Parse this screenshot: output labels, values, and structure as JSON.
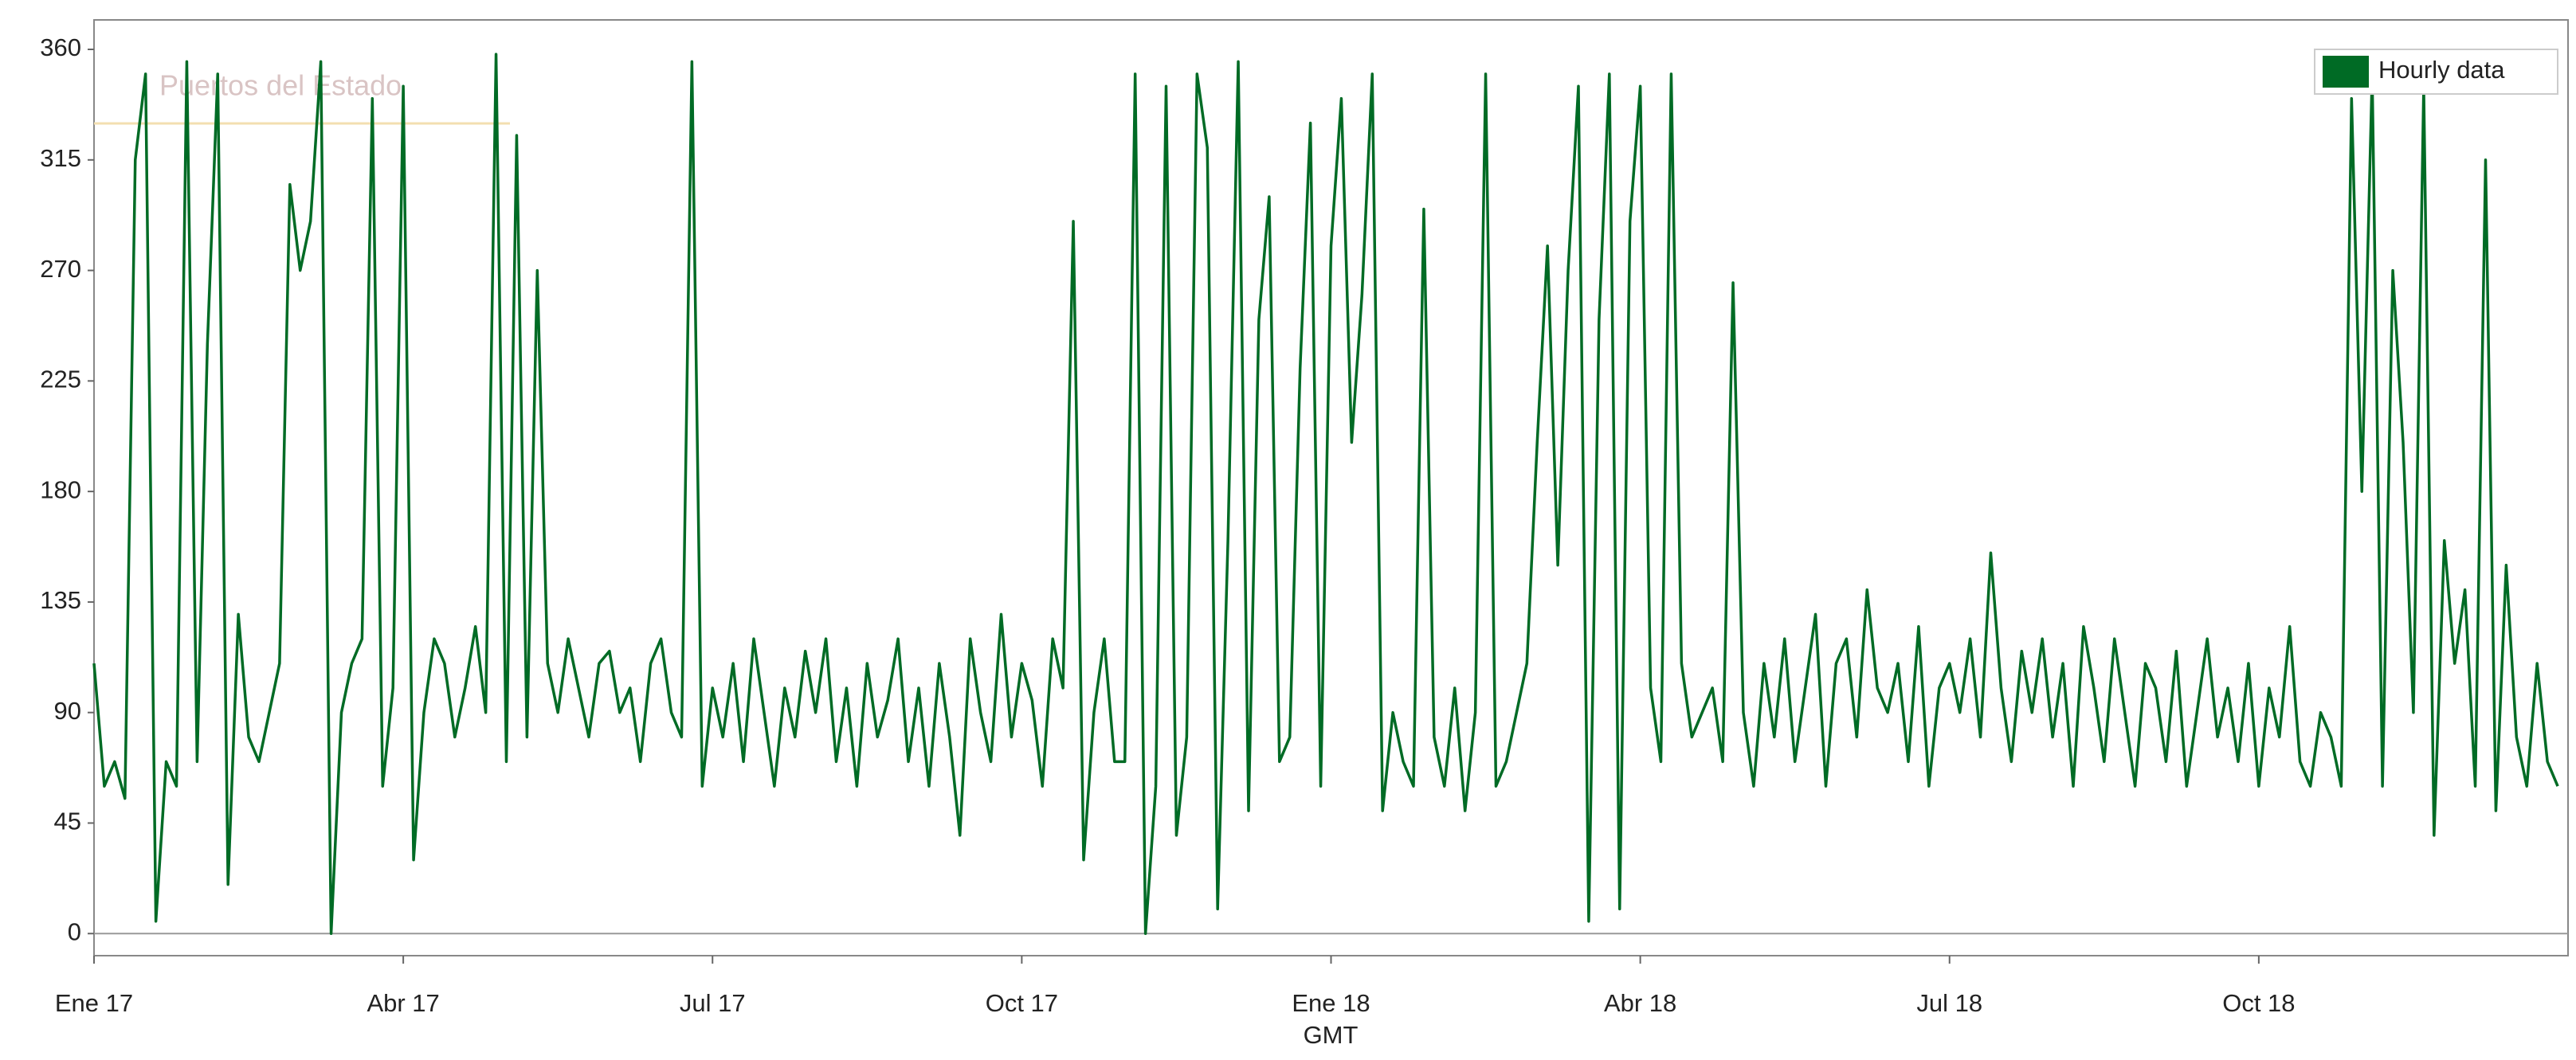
{
  "chart_data": {
    "type": "line",
    "watermark": "Puertos del Estado",
    "xlabel": "GMT",
    "legend": "top-right",
    "xlim": [
      0,
      24
    ],
    "xticks": [
      {
        "value": 0,
        "label": "Ene 17"
      },
      {
        "value": 3,
        "label": "Abr 17"
      },
      {
        "value": 6,
        "label": "Jul 17"
      },
      {
        "value": 9,
        "label": "Oct 17"
      },
      {
        "value": 12,
        "label": "Ene 18"
      },
      {
        "value": 15,
        "label": "Abr 18"
      },
      {
        "value": 18,
        "label": "Jul 18"
      },
      {
        "value": 21,
        "label": "Oct 18"
      }
    ],
    "ylim": [
      -9,
      372
    ],
    "yticks": [
      0,
      45,
      90,
      135,
      180,
      225,
      270,
      315,
      360
    ],
    "x": [
      0,
      0.1,
      0.2,
      0.3,
      0.4,
      0.5,
      0.6,
      0.7,
      0.8,
      0.9,
      1,
      1.1,
      1.2,
      1.3,
      1.4,
      1.5,
      1.6,
      1.7,
      1.8,
      1.9,
      2,
      2.1,
      2.2,
      2.3,
      2.4,
      2.5,
      2.6,
      2.7,
      2.8,
      2.9,
      3,
      3.1,
      3.2,
      3.3,
      3.4,
      3.5,
      3.6,
      3.7,
      3.8,
      3.9,
      4,
      4.1,
      4.2,
      4.3,
      4.4,
      4.5,
      4.6,
      4.7,
      4.8,
      4.9,
      5,
      5.1,
      5.2,
      5.3,
      5.4,
      5.5,
      5.6,
      5.7,
      5.8,
      5.9,
      6,
      6.1,
      6.2,
      6.3,
      6.4,
      6.5,
      6.6,
      6.7,
      6.8,
      6.9,
      7,
      7.1,
      7.2,
      7.3,
      7.4,
      7.5,
      7.6,
      7.7,
      7.8,
      7.9,
      8,
      8.1,
      8.2,
      8.3,
      8.4,
      8.5,
      8.6,
      8.7,
      8.8,
      8.9,
      9,
      9.1,
      9.2,
      9.3,
      9.4,
      9.5,
      9.6,
      9.7,
      9.8,
      9.9,
      10,
      10.1,
      10.2,
      10.3,
      10.4,
      10.5,
      10.6,
      10.7,
      10.8,
      10.9,
      11,
      11.1,
      11.2,
      11.3,
      11.4,
      11.5,
      11.6,
      11.7,
      11.8,
      11.9,
      12,
      12.1,
      12.2,
      12.3,
      12.4,
      12.5,
      12.6,
      12.7,
      12.8,
      12.9,
      13,
      13.1,
      13.2,
      13.3,
      13.4,
      13.5,
      13.6,
      13.7,
      13.8,
      13.9,
      14,
      14.1,
      14.2,
      14.3,
      14.4,
      14.5,
      14.6,
      14.7,
      14.8,
      14.9,
      15,
      15.1,
      15.2,
      15.3,
      15.4,
      15.5,
      15.6,
      15.7,
      15.8,
      15.9,
      16,
      16.1,
      16.2,
      16.3,
      16.4,
      16.5,
      16.6,
      16.7,
      16.8,
      16.9,
      17,
      17.1,
      17.2,
      17.3,
      17.4,
      17.5,
      17.6,
      17.7,
      17.8,
      17.9,
      18,
      18.1,
      18.2,
      18.3,
      18.4,
      18.5,
      18.6,
      18.7,
      18.8,
      18.9,
      19,
      19.1,
      19.2,
      19.3,
      19.4,
      19.5,
      19.6,
      19.7,
      19.8,
      19.9,
      20,
      20.1,
      20.2,
      20.3,
      20.4,
      20.5,
      20.6,
      20.7,
      20.8,
      20.9,
      21,
      21.1,
      21.2,
      21.3,
      21.4,
      21.5,
      21.6,
      21.7,
      21.8,
      21.9,
      22,
      22.1,
      22.2,
      22.3,
      22.4,
      22.5,
      22.6,
      22.7,
      22.8,
      22.9,
      23,
      23.1,
      23.2,
      23.3,
      23.4,
      23.5,
      23.6,
      23.7,
      23.8,
      23.9
    ],
    "series": [
      {
        "name": "Hourly data",
        "color": "#006b25",
        "values": [
          110,
          60,
          70,
          55,
          315,
          350,
          5,
          70,
          60,
          355,
          70,
          240,
          350,
          20,
          130,
          80,
          70,
          90,
          110,
          305,
          270,
          290,
          355,
          0,
          90,
          110,
          120,
          340,
          60,
          100,
          345,
          30,
          90,
          120,
          110,
          80,
          100,
          125,
          90,
          358,
          70,
          325,
          80,
          270,
          110,
          90,
          120,
          100,
          80,
          110,
          115,
          90,
          100,
          70,
          110,
          120,
          90,
          80,
          355,
          60,
          100,
          80,
          110,
          70,
          120,
          90,
          60,
          100,
          80,
          115,
          90,
          120,
          70,
          100,
          60,
          110,
          80,
          95,
          120,
          70,
          100,
          60,
          110,
          80,
          40,
          120,
          90,
          70,
          130,
          80,
          110,
          95,
          60,
          120,
          100,
          290,
          30,
          90,
          120,
          70,
          70,
          350,
          0,
          60,
          345,
          40,
          80,
          350,
          320,
          10,
          160,
          355,
          50,
          250,
          300,
          70,
          80,
          230,
          330,
          60,
          280,
          340,
          200,
          260,
          350,
          50,
          90,
          70,
          60,
          295,
          80,
          60,
          100,
          50,
          90,
          350,
          60,
          70,
          90,
          110,
          200,
          280,
          150,
          270,
          345,
          5,
          250,
          350,
          10,
          290,
          345,
          100,
          70,
          350,
          110,
          80,
          90,
          100,
          70,
          265,
          90,
          60,
          110,
          80,
          120,
          70,
          100,
          130,
          60,
          110,
          120,
          80,
          140,
          100,
          90,
          110,
          70,
          125,
          60,
          100,
          110,
          90,
          120,
          80,
          155,
          100,
          70,
          115,
          90,
          120,
          80,
          110,
          60,
          125,
          100,
          70,
          120,
          90,
          60,
          110,
          100,
          70,
          115,
          60,
          90,
          120,
          80,
          100,
          70,
          110,
          60,
          100,
          80,
          125,
          70,
          60,
          90,
          80,
          60,
          340,
          180,
          350,
          60,
          270,
          200,
          90,
          345,
          40,
          160,
          110,
          140,
          60,
          315,
          50,
          150,
          80,
          60,
          110,
          70,
          60
        ]
      }
    ]
  }
}
